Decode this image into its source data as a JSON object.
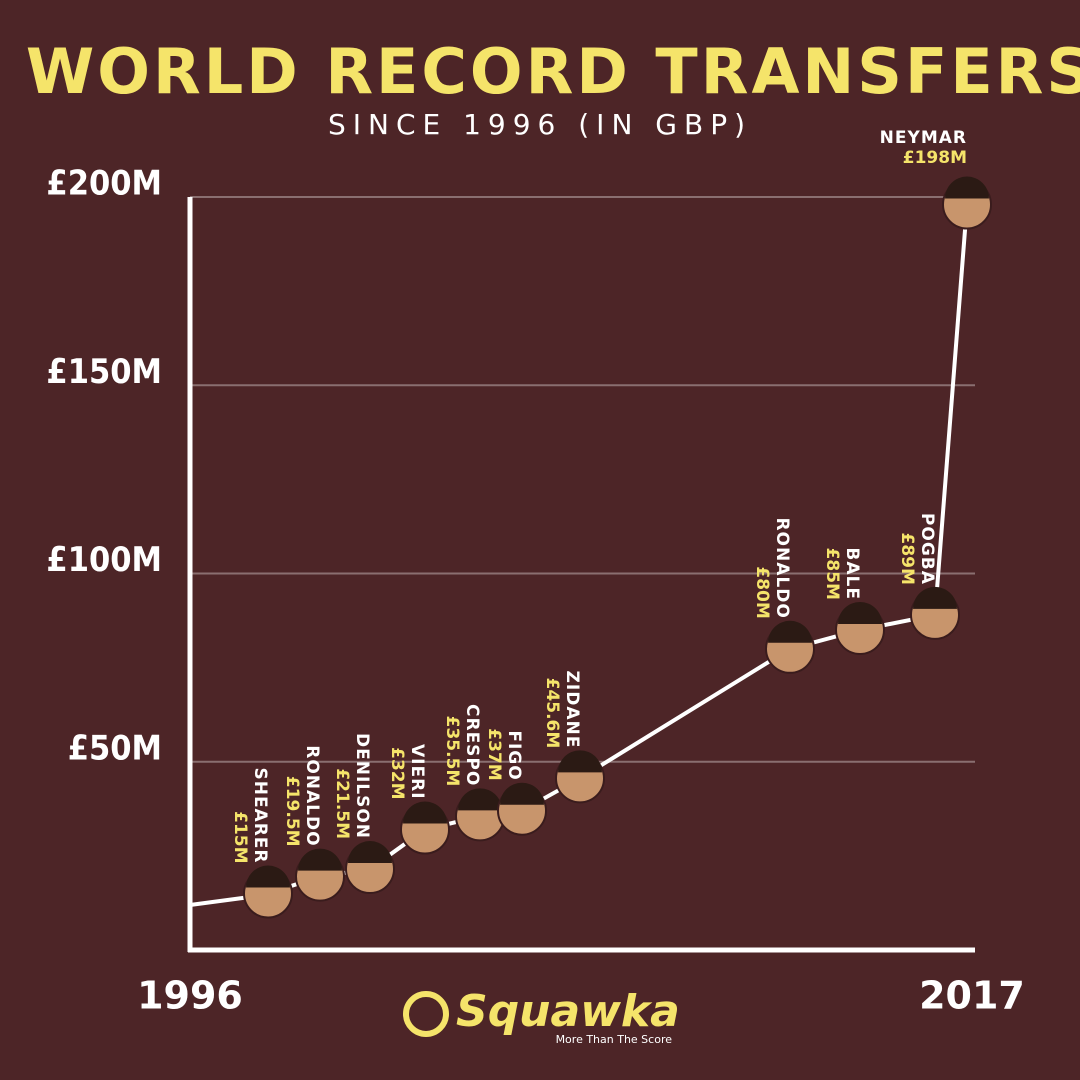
{
  "chart_data": {
    "type": "line",
    "title": "WORLD RECORD TRANSFERS",
    "subtitle": "SINCE 1996 (IN GBP)",
    "categories": [
      "SHEARER",
      "RONALDO",
      "DENILSON",
      "VIERI",
      "CRESPO",
      "FIGO",
      "ZIDANE",
      "RONALDO",
      "BALE",
      "POGBA",
      "NEYMAR"
    ],
    "values": [
      15,
      19.5,
      21.5,
      32,
      35.5,
      37,
      45.6,
      80,
      85,
      89,
      198
    ],
    "value_labels": [
      "£15M",
      "£19.5M",
      "£21.5M",
      "£32M",
      "£35.5M",
      "£37M",
      "£45.6M",
      "£80M",
      "£85M",
      "£89M",
      "£198M"
    ],
    "color": "#ffffff",
    "ylim": [
      0,
      200
    ],
    "yticks": [
      {
        "value": 50,
        "label": "£50M"
      },
      {
        "value": 100,
        "label": "£100M"
      },
      {
        "value": 150,
        "label": "£150M"
      },
      {
        "value": 200,
        "label": "£200M"
      }
    ],
    "grid": true,
    "x_axis_labels": [
      "1996",
      "2017"
    ],
    "brand": "Squawka",
    "tagline": "More Than The Score"
  }
}
